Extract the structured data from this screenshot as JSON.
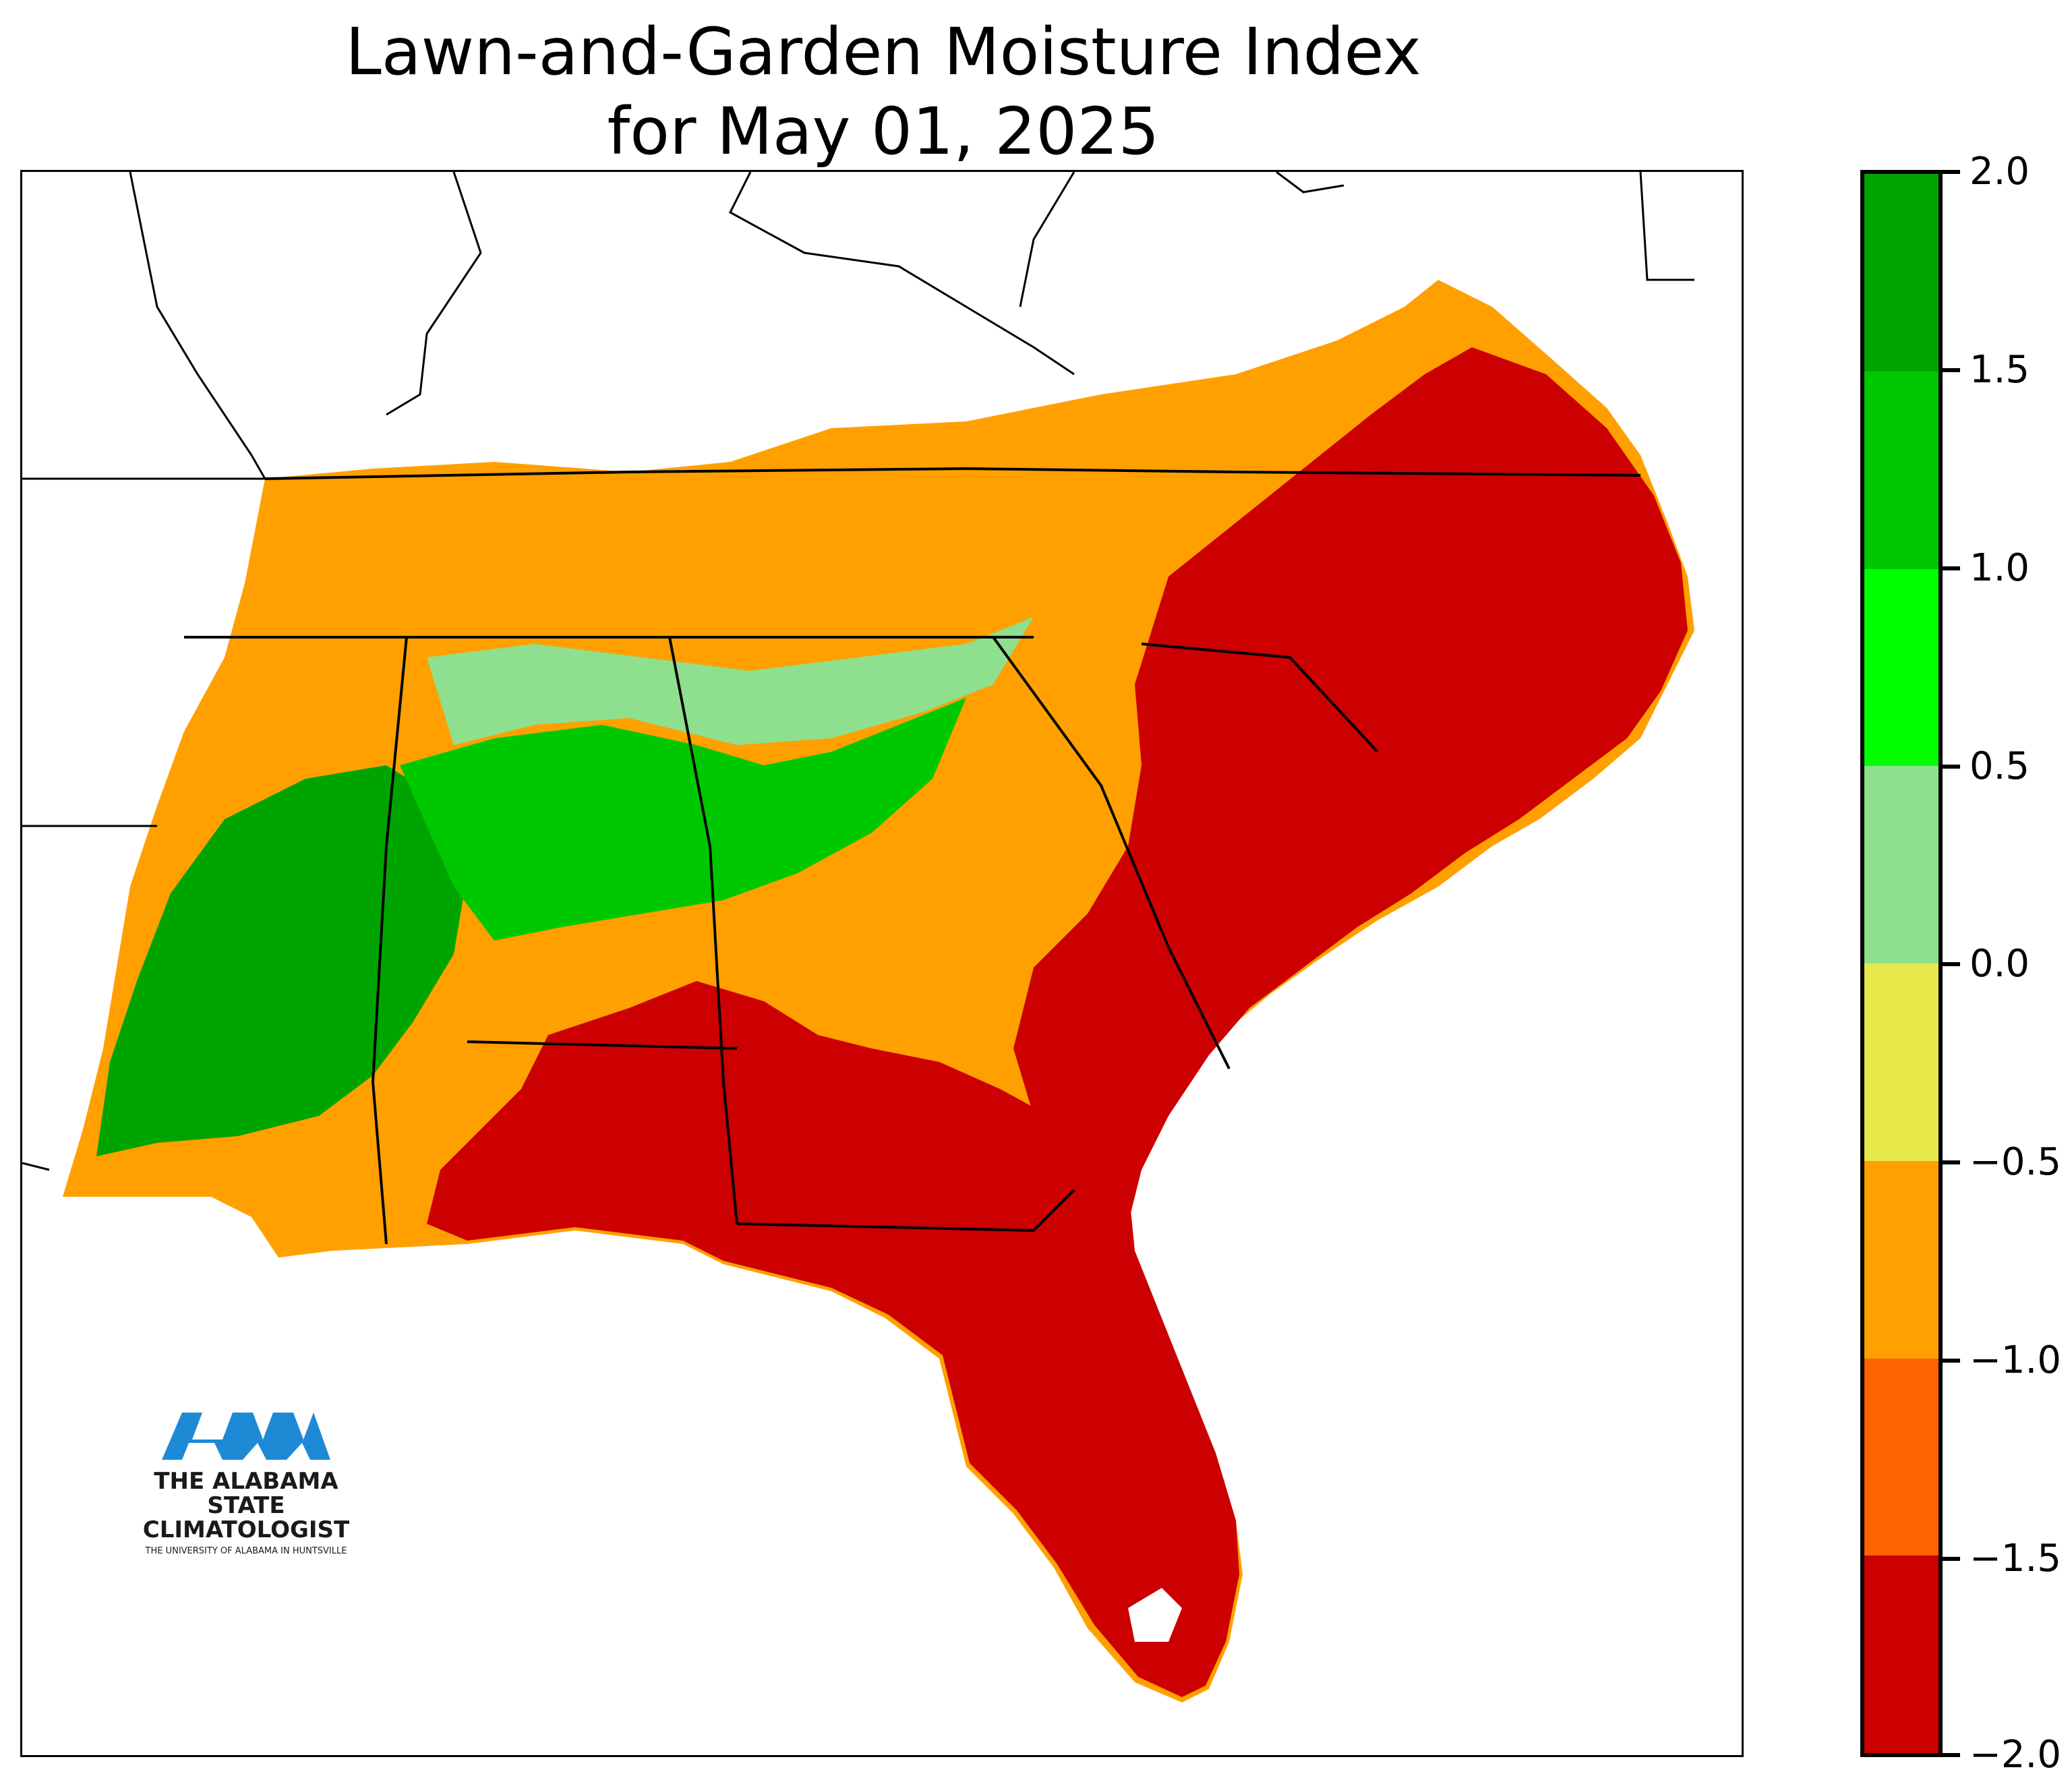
{
  "title": {
    "line1": "Lawn-and-Garden Moisture Index",
    "line2": "for May 01, 2025"
  },
  "colorbar": {
    "ticks": [
      "2.0",
      "1.5",
      "1.0",
      "0.5",
      "0.0",
      "−0.5",
      "−1.0",
      "−1.5",
      "−2.0"
    ],
    "colors_top_to_bottom": [
      "#00a400",
      "#00c800",
      "#00ff00",
      "#8ee08e",
      "#e8e84a",
      "#ffa000",
      "#ff6200",
      "#cc0000"
    ]
  },
  "logo": {
    "mark": "UAH",
    "line1": "THE ALABAMA STATE",
    "line2": "CLIMATOLOGIST",
    "line3": "THE UNIVERSITY OF ALABAMA IN HUNTSVILLE"
  },
  "colors": {
    "very_dry": "#cc0000",
    "dry": "#ff6200",
    "slightly_dry": "#ffa000",
    "near_normal_dry": "#e8e84a",
    "near_normal_wet": "#8ee08e",
    "wet": "#00c800",
    "very_wet": "#00a400",
    "logo_blue": "#1e8ad6"
  }
}
